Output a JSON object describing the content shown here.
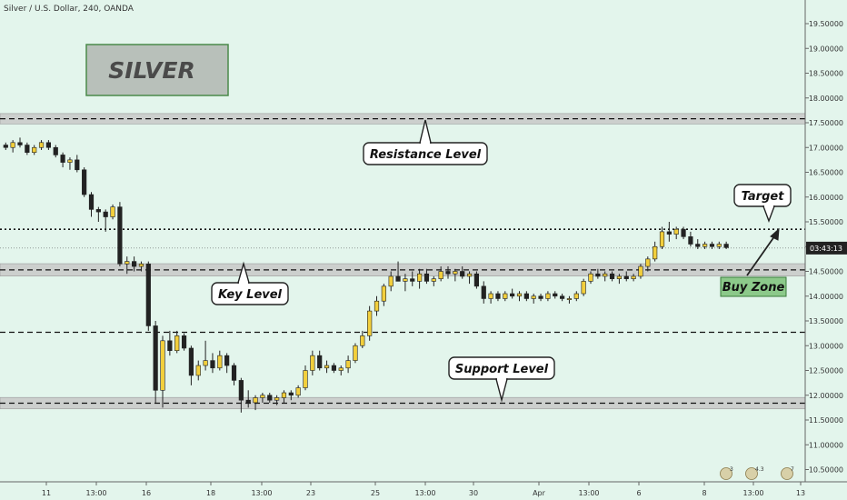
{
  "header": {
    "title": "Silver / U.S. Dollar, 240, OANDA"
  },
  "colors": {
    "background": "#e3f5ec",
    "bull": "#f2cf3c",
    "bear": "#222222",
    "zone_fill": "#c8c8c8",
    "buy_zone_fill": "#8cc98a",
    "axis_label_bg": "#222222"
  },
  "chart_data": {
    "type": "candlestick",
    "title": "Silver / U.S. Dollar, 240, OANDA",
    "ylim": [
      10.3,
      19.7
    ],
    "y_ticks": [
      "19.50000",
      "19.00000",
      "18.50000",
      "18.00000",
      "17.50000",
      "17.00000",
      "16.50000",
      "16.00000",
      "15.50000",
      "15.00000",
      "14.50000",
      "14.00000",
      "13.50000",
      "13.00000",
      "12.50000",
      "12.00000",
      "11.50000",
      "11.00000",
      "10.50000"
    ],
    "x_ticks": [
      "11",
      "13:00",
      "16",
      "18",
      "13:00",
      "23",
      "25",
      "13:00",
      "30",
      "Apr",
      "13:00",
      "6",
      "8",
      "13:00",
      "13"
    ],
    "price_label": "03:43:13",
    "price_level": 14.97,
    "ohlc": [
      [
        17.05,
        17.1,
        16.95,
        17.0
      ],
      [
        17.0,
        17.15,
        16.9,
        17.1
      ],
      [
        17.1,
        17.2,
        17.0,
        17.05
      ],
      [
        17.05,
        17.1,
        16.85,
        16.9
      ],
      [
        16.9,
        17.05,
        16.85,
        17.0
      ],
      [
        17.0,
        17.15,
        16.95,
        17.1
      ],
      [
        17.1,
        17.15,
        16.95,
        17.0
      ],
      [
        17.0,
        17.05,
        16.8,
        16.85
      ],
      [
        16.85,
        16.9,
        16.6,
        16.7
      ],
      [
        16.7,
        16.8,
        16.55,
        16.75
      ],
      [
        16.75,
        16.85,
        16.5,
        16.55
      ],
      [
        16.55,
        16.6,
        16.0,
        16.05
      ],
      [
        16.05,
        16.1,
        15.6,
        15.75
      ],
      [
        15.75,
        15.8,
        15.5,
        15.7
      ],
      [
        15.7,
        15.75,
        15.3,
        15.6
      ],
      [
        15.6,
        15.85,
        15.55,
        15.8
      ],
      [
        15.8,
        15.9,
        14.6,
        14.65
      ],
      [
        14.65,
        14.8,
        14.45,
        14.7
      ],
      [
        14.7,
        14.8,
        14.5,
        14.6
      ],
      [
        14.6,
        14.7,
        14.5,
        14.65
      ],
      [
        14.65,
        14.7,
        13.3,
        13.4
      ],
      [
        13.4,
        13.5,
        11.85,
        12.1
      ],
      [
        12.1,
        13.2,
        11.75,
        13.1
      ],
      [
        13.1,
        13.3,
        12.8,
        12.9
      ],
      [
        12.9,
        13.3,
        12.85,
        13.2
      ],
      [
        13.2,
        13.25,
        12.9,
        12.95
      ],
      [
        12.95,
        13.0,
        12.2,
        12.4
      ],
      [
        12.4,
        12.7,
        12.3,
        12.6
      ],
      [
        12.6,
        13.1,
        12.5,
        12.7
      ],
      [
        12.7,
        12.85,
        12.45,
        12.55
      ],
      [
        12.55,
        12.9,
        12.5,
        12.8
      ],
      [
        12.8,
        12.85,
        12.45,
        12.6
      ],
      [
        12.6,
        12.65,
        12.2,
        12.3
      ],
      [
        12.3,
        12.35,
        11.65,
        11.9
      ],
      [
        11.9,
        12.1,
        11.75,
        11.85
      ],
      [
        11.85,
        12.0,
        11.7,
        11.95
      ],
      [
        11.95,
        12.05,
        11.85,
        12.0
      ],
      [
        12.0,
        12.05,
        11.85,
        11.9
      ],
      [
        11.9,
        12.0,
        11.8,
        11.95
      ],
      [
        11.95,
        12.1,
        11.85,
        12.05
      ],
      [
        12.05,
        12.1,
        11.9,
        12.0
      ],
      [
        12.0,
        12.2,
        11.95,
        12.15
      ],
      [
        12.15,
        12.6,
        12.1,
        12.5
      ],
      [
        12.5,
        12.9,
        12.4,
        12.8
      ],
      [
        12.8,
        12.9,
        12.5,
        12.55
      ],
      [
        12.55,
        12.7,
        12.45,
        12.6
      ],
      [
        12.6,
        12.65,
        12.45,
        12.5
      ],
      [
        12.5,
        12.6,
        12.4,
        12.55
      ],
      [
        12.55,
        12.8,
        12.45,
        12.7
      ],
      [
        12.7,
        13.05,
        12.65,
        13.0
      ],
      [
        13.0,
        13.3,
        12.95,
        13.2
      ],
      [
        13.2,
        13.8,
        13.1,
        13.7
      ],
      [
        13.7,
        14.0,
        13.6,
        13.9
      ],
      [
        13.9,
        14.25,
        13.8,
        14.2
      ],
      [
        14.2,
        14.5,
        14.1,
        14.4
      ],
      [
        14.4,
        14.7,
        14.3,
        14.3
      ],
      [
        14.3,
        14.45,
        14.1,
        14.35
      ],
      [
        14.35,
        14.5,
        14.2,
        14.3
      ],
      [
        14.3,
        14.55,
        14.15,
        14.45
      ],
      [
        14.45,
        14.55,
        14.25,
        14.3
      ],
      [
        14.3,
        14.4,
        14.2,
        14.35
      ],
      [
        14.35,
        14.6,
        14.3,
        14.5
      ],
      [
        14.5,
        14.6,
        14.35,
        14.45
      ],
      [
        14.45,
        14.55,
        14.3,
        14.5
      ],
      [
        14.5,
        14.6,
        14.35,
        14.4
      ],
      [
        14.4,
        14.5,
        14.25,
        14.45
      ],
      [
        14.45,
        14.5,
        14.15,
        14.2
      ],
      [
        14.2,
        14.3,
        13.85,
        13.95
      ],
      [
        13.95,
        14.1,
        13.85,
        14.05
      ],
      [
        14.05,
        14.1,
        13.9,
        13.95
      ],
      [
        13.95,
        14.1,
        13.9,
        14.05
      ],
      [
        14.05,
        14.15,
        13.95,
        14.0
      ],
      [
        14.0,
        14.1,
        13.9,
        14.05
      ],
      [
        14.05,
        14.1,
        13.9,
        13.95
      ],
      [
        13.95,
        14.05,
        13.85,
        14.0
      ],
      [
        14.0,
        14.05,
        13.9,
        13.95
      ],
      [
        13.95,
        14.1,
        13.9,
        14.05
      ],
      [
        14.05,
        14.1,
        13.95,
        14.0
      ],
      [
        14.0,
        14.05,
        13.9,
        13.95
      ],
      [
        13.95,
        14.0,
        13.85,
        13.95
      ],
      [
        13.95,
        14.1,
        13.9,
        14.05
      ],
      [
        14.05,
        14.35,
        14.0,
        14.3
      ],
      [
        14.3,
        14.5,
        14.25,
        14.45
      ],
      [
        14.45,
        14.55,
        14.35,
        14.4
      ],
      [
        14.4,
        14.5,
        14.3,
        14.45
      ],
      [
        14.45,
        14.5,
        14.3,
        14.35
      ],
      [
        14.35,
        14.45,
        14.25,
        14.4
      ],
      [
        14.4,
        14.5,
        14.3,
        14.35
      ],
      [
        14.35,
        14.45,
        14.3,
        14.4
      ],
      [
        14.4,
        14.65,
        14.35,
        14.6
      ],
      [
        14.6,
        14.8,
        14.5,
        14.75
      ],
      [
        14.75,
        15.1,
        14.7,
        15.0
      ],
      [
        15.0,
        15.4,
        14.95,
        15.3
      ],
      [
        15.3,
        15.5,
        15.1,
        15.25
      ],
      [
        15.25,
        15.4,
        15.15,
        15.35
      ],
      [
        15.35,
        15.4,
        15.15,
        15.2
      ],
      [
        15.2,
        15.3,
        15.0,
        15.05
      ],
      [
        15.05,
        15.15,
        14.95,
        15.0
      ],
      [
        15.0,
        15.1,
        14.95,
        15.05
      ],
      [
        15.05,
        15.1,
        14.95,
        15.0
      ],
      [
        15.0,
        15.1,
        14.95,
        15.05
      ],
      [
        15.05,
        15.1,
        14.95,
        14.98
      ]
    ],
    "zones": [
      {
        "name": "Resistance Level",
        "range": [
          17.53,
          17.63
        ],
        "label_price": 16.9
      },
      {
        "name": "Key Level",
        "range": [
          14.46,
          14.6
        ],
        "label_price": 13.98
      },
      {
        "name": "Support Level",
        "range": [
          11.78,
          11.9
        ],
        "label_price": 12.57
      }
    ],
    "dashed_levels": [
      13.27
    ],
    "dotted_levels": [
      15.35
    ],
    "annotations": [
      {
        "text": "Resistance Level",
        "kind": "callout"
      },
      {
        "text": "Key Level",
        "kind": "callout"
      },
      {
        "text": "Support Level",
        "kind": "callout"
      },
      {
        "text": "Target",
        "kind": "callout"
      },
      {
        "text": "Buy Zone",
        "kind": "zone-label"
      }
    ],
    "watermark": "SILVER",
    "footer_badges": [
      "3",
      "4.3",
      "7"
    ]
  }
}
